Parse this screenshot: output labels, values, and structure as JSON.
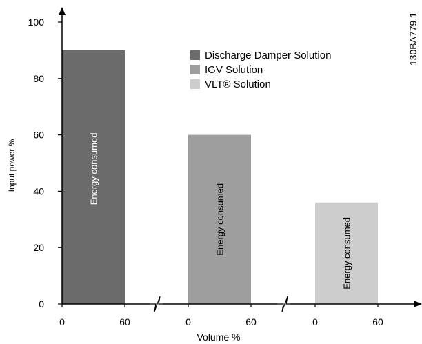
{
  "colors": {
    "discharge": "#6b6b6b",
    "igv": "#9e9e9e",
    "vlt": "#cdcdcd",
    "axis": "#000000",
    "label_light": "#ffffff",
    "label_dark": "#000000"
  },
  "doc_id": "130BA779.1",
  "chart_data": {
    "type": "bar",
    "ylabel": "Input power %",
    "xlabel": "Volume %",
    "ylim": [
      0,
      100
    ],
    "yticks": [
      "0",
      "20",
      "40",
      "60",
      "80",
      "100"
    ],
    "x_tick_labels": [
      "0",
      "60"
    ],
    "bar_label": "Energy consumed",
    "legend_position": "top-right",
    "series": [
      {
        "name": "Discharge Damper Solution",
        "x": [
          0,
          60
        ],
        "value": 90
      },
      {
        "name": "IGV Solution",
        "x": [
          0,
          60
        ],
        "value": 60
      },
      {
        "name": "VLT® Solution",
        "x": [
          0,
          60
        ],
        "value": 36
      }
    ]
  }
}
